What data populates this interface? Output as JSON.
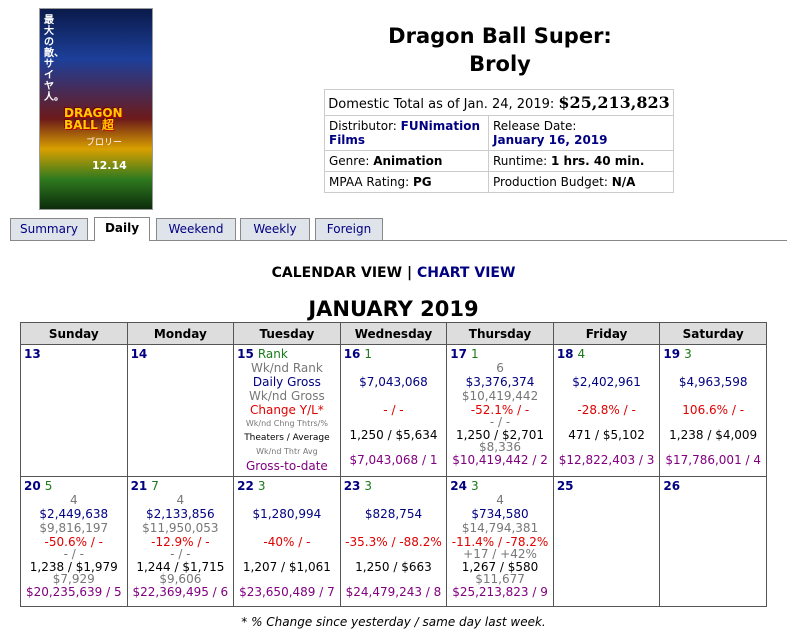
{
  "poster": {
    "jp_text": "最大の敵、サイヤ人。",
    "logo": "DRAGON BALL 超",
    "subtitle": "ブロリー",
    "date": "12.14"
  },
  "movie": {
    "title_line1": "Dragon Ball Super:",
    "title_line2": "Broly"
  },
  "info": {
    "total_label": "Domestic Total as of Jan. 24, 2019:",
    "total_value": "$25,213,823",
    "distributor_label": "Distributor:",
    "distributor_value": "FUNimation Films",
    "release_label": "Release Date:",
    "release_value": "January 16, 2019",
    "genre_label": "Genre:",
    "genre_value": "Animation",
    "runtime_label": "Runtime:",
    "runtime_value": "1 hrs. 40 min.",
    "mpaa_label": "MPAA Rating:",
    "mpaa_value": "PG",
    "budget_label": "Production Budget:",
    "budget_value": "N/A"
  },
  "tabs": [
    "Summary",
    "Daily",
    "Weekend",
    "Weekly",
    "Foreign"
  ],
  "active_tab": "Daily",
  "views": {
    "calendar": "CALENDAR VIEW",
    "sep": "|",
    "chart": "CHART VIEW"
  },
  "month": "JANUARY 2019",
  "weekdays": [
    "Sunday",
    "Monday",
    "Tuesday",
    "Wednesday",
    "Thursday",
    "Friday",
    "Saturday"
  ],
  "week1": [
    {
      "day": "13"
    },
    {
      "day": "14"
    },
    {
      "day": "15",
      "rank": "Rank",
      "wk_rank": "Wk/nd Rank",
      "gross": "Daily Gross",
      "wk_gross": "Wk/nd Gross",
      "change": "Change Y/L*",
      "wk_chng": "Wk/nd Chng Thtrs/%",
      "theaters": "Theaters / Average",
      "wk_thtr": "Wk/nd Thtr Avg",
      "to_date": "Gross-to-date"
    },
    {
      "day": "16",
      "rank": "1",
      "gross": "$7,043,068",
      "change": "- / -",
      "theaters": "1,250 / $5,634",
      "to_date": "$7,043,068 / 1"
    },
    {
      "day": "17",
      "rank": "1",
      "wk_rank": "6",
      "gross": "$3,376,374",
      "wk_gross": "$10,419,442",
      "change": "-52.1% / -",
      "wk_chng": "- / -",
      "theaters": "1,250 / $2,701",
      "wk_thtr": "$8,336",
      "to_date": "$10,419,442 / 2"
    },
    {
      "day": "18",
      "rank": "4",
      "gross": "$2,402,961",
      "change": "-28.8% / -",
      "theaters": "471 / $5,102",
      "to_date": "$12,822,403 / 3"
    },
    {
      "day": "19",
      "rank": "3",
      "gross": "$4,963,598",
      "change": "106.6% / -",
      "theaters": "1,238 / $4,009",
      "to_date": "$17,786,001 / 4"
    }
  ],
  "week2": [
    {
      "day": "20",
      "rank": "5",
      "wk_rank": "4",
      "gross": "$2,449,638",
      "wk_gross": "$9,816,197",
      "change": "-50.6% / -",
      "wk_chng": "- / -",
      "theaters": "1,238 / $1,979",
      "wk_thtr": "$7,929",
      "to_date": "$20,235,639 / 5"
    },
    {
      "day": "21",
      "rank": "7",
      "wk_rank": "4",
      "gross": "$2,133,856",
      "wk_gross": "$11,950,053",
      "change": "-12.9% / -",
      "wk_chng": "- / -",
      "theaters": "1,244 / $1,715",
      "wk_thtr": "$9,606",
      "to_date": "$22,369,495 / 6"
    },
    {
      "day": "22",
      "rank": "3",
      "gross": "$1,280,994",
      "change": "-40% / -",
      "theaters": "1,207 / $1,061",
      "to_date": "$23,650,489 / 7"
    },
    {
      "day": "23",
      "rank": "3",
      "gross": "$828,754",
      "change": "-35.3% / -88.2%",
      "theaters": "1,250 / $663",
      "to_date": "$24,479,243 / 8"
    },
    {
      "day": "24",
      "rank": "3",
      "wk_rank": "4",
      "gross": "$734,580",
      "wk_gross": "$14,794,381",
      "change": "-11.4% / -78.2%",
      "wk_chng": "+17 / +42%",
      "theaters": "1,267 / $580",
      "wk_thtr": "$11,677",
      "to_date": "$25,213,823 / 9"
    },
    {
      "day": "25"
    },
    {
      "day": "26"
    }
  ],
  "footnote": "* % Change since yesterday / same day last week."
}
